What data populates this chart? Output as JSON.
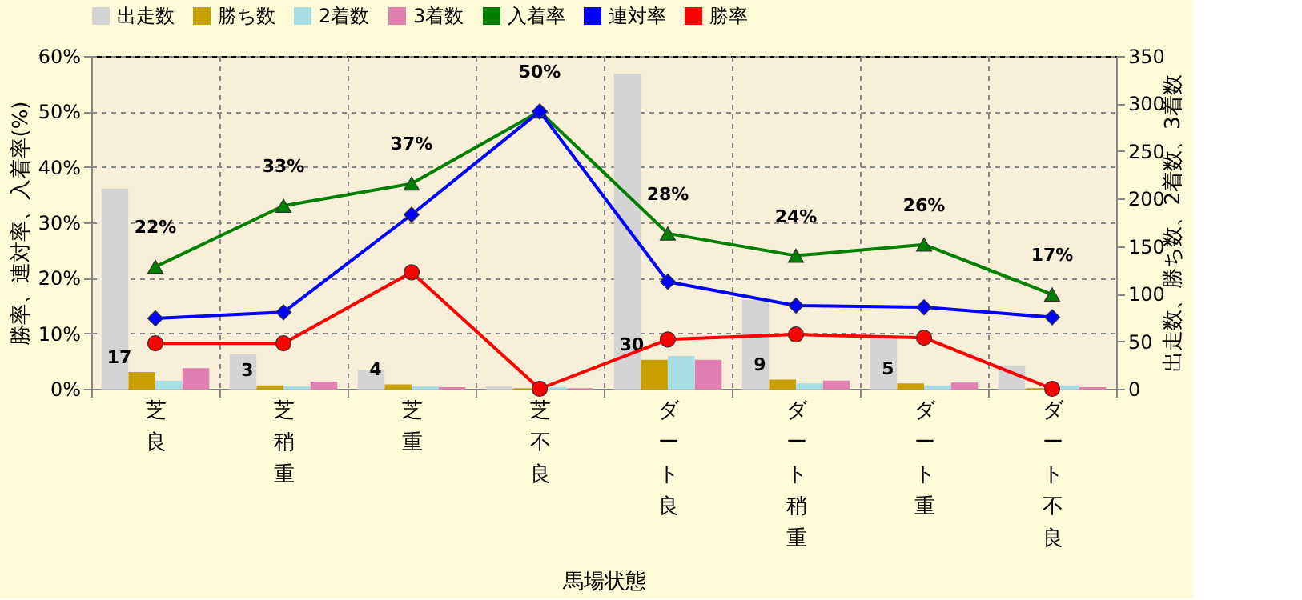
{
  "chart_data": {
    "type": "bar",
    "xlabel": "馬場状態",
    "ylabel": "勝率、連対率、入着率(%)",
    "y2label": "出走数、勝ち数、2着数、3着数",
    "categories": [
      "芝良",
      "芝稍重",
      "芝重",
      "芝不良",
      "ダート良",
      "ダート稍重",
      "ダート重",
      "ダート不良"
    ],
    "series": [
      {
        "name": "出走数",
        "type": "bar",
        "axis": "y2",
        "color": "#d4d4d4",
        "values": [
          210,
          36,
          19,
          2,
          331,
          93,
          54,
          24
        ]
      },
      {
        "name": "勝ち数",
        "type": "bar",
        "axis": "y2",
        "color": "#c8a000",
        "values": [
          17,
          3,
          4,
          0,
          30,
          9,
          5,
          0
        ],
        "value_labels": [
          "17",
          "3",
          "4",
          null,
          "30",
          "9",
          "5",
          null
        ]
      },
      {
        "name": "2着数",
        "type": "bar",
        "axis": "y2",
        "color": "#a8dde4",
        "values": [
          8,
          2,
          2,
          1,
          34,
          5,
          3,
          3
        ]
      },
      {
        "name": "3着数",
        "type": "bar",
        "axis": "y2",
        "color": "#e080b0",
        "values": [
          21,
          7,
          1,
          0,
          30,
          8,
          6,
          1
        ]
      },
      {
        "name": "入着率",
        "type": "line",
        "color": "#008000",
        "marker": "triangle",
        "values": [
          22,
          33,
          37,
          50,
          28,
          24,
          26,
          17
        ],
        "value_labels": [
          "22%",
          "33%",
          "37%",
          "50%",
          "28%",
          "24%",
          "26%",
          "17%"
        ]
      },
      {
        "name": "連対率",
        "type": "line",
        "color": "#0000ff",
        "marker": "diamond",
        "values": [
          12.7,
          13.8,
          31.4,
          50,
          19.3,
          15,
          14.7,
          12.9
        ]
      },
      {
        "name": "勝率",
        "type": "line",
        "color": "#ff0000",
        "marker": "circle",
        "values": [
          8.2,
          8.2,
          21,
          0,
          8.9,
          9.8,
          9.2,
          0
        ]
      }
    ],
    "ylim": [
      0,
      60
    ],
    "yticks": [
      {
        "value": 0,
        "label": "0%"
      },
      {
        "value": 10,
        "label": "10%"
      },
      {
        "value": 20,
        "label": "20%"
      },
      {
        "value": 30,
        "label": "30%"
      },
      {
        "value": 40,
        "label": "40%"
      },
      {
        "value": 50,
        "label": "50%"
      },
      {
        "value": 60,
        "label": "60%"
      }
    ],
    "y2lim": [
      0,
      350
    ],
    "y2ticks": [
      0,
      50,
      100,
      150,
      200,
      250,
      300,
      350
    ],
    "grid": true,
    "legend": "top"
  }
}
